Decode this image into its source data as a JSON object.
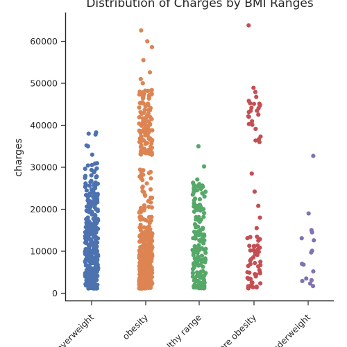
{
  "chart_data": {
    "type": "scatter",
    "subtype": "strip",
    "title": "Distribution of Charges by BMI Ranges",
    "xlabel": "",
    "ylabel": "charges",
    "ylim": [
      -2000,
      67000
    ],
    "yticks": [
      0,
      10000,
      20000,
      30000,
      40000,
      50000,
      60000
    ],
    "ytick_labels": [
      "0",
      "10000",
      "20000",
      "30000",
      "40000",
      "50000",
      "60000"
    ],
    "categories": [
      "overweight",
      "obesity",
      "healthy range",
      "severe obesity",
      "underweight"
    ],
    "grid": false,
    "series": [
      {
        "category": "overweight",
        "color": "#4c72b0",
        "distribution": [
          {
            "lo": 1100,
            "hi": 15000,
            "n": 240
          },
          {
            "lo": 15000,
            "hi": 26000,
            "n": 90
          },
          {
            "lo": 26000,
            "hi": 31000,
            "n": 22
          }
        ],
        "extra_points": [
          33000,
          35000,
          35200,
          37800,
          38000,
          38300
        ]
      },
      {
        "category": "obesity",
        "color": "#dd8452",
        "distribution": [
          {
            "lo": 1100,
            "hi": 15000,
            "n": 320
          },
          {
            "lo": 15000,
            "hi": 30000,
            "n": 55
          },
          {
            "lo": 33000,
            "hi": 49000,
            "n": 120
          }
        ],
        "extra_points": [
          50000,
          51000,
          52600,
          55500,
          58600,
          60000,
          62600
        ]
      },
      {
        "category": "healthy range",
        "color": "#55a868",
        "distribution": [
          {
            "lo": 1100,
            "hi": 15000,
            "n": 110
          },
          {
            "lo": 15000,
            "hi": 27500,
            "n": 55
          }
        ],
        "extra_points": [
          30200,
          35000
        ]
      },
      {
        "category": "severe obesity",
        "color": "#c44e52",
        "distribution": [
          {
            "lo": 1100,
            "hi": 13500,
            "n": 50
          },
          {
            "lo": 36000,
            "hi": 49000,
            "n": 25
          }
        ],
        "extra_points": [
          15500,
          18000,
          20800,
          24200,
          28500,
          63800
        ]
      },
      {
        "category": "underweight",
        "color": "#8172b3",
        "distribution": [],
        "extra_points": [
          1700,
          2300,
          2900,
          3100,
          3500,
          5200,
          6800,
          7000,
          9700,
          10100,
          12600,
          13100,
          14500,
          15000,
          19000,
          32700
        ]
      }
    ]
  }
}
